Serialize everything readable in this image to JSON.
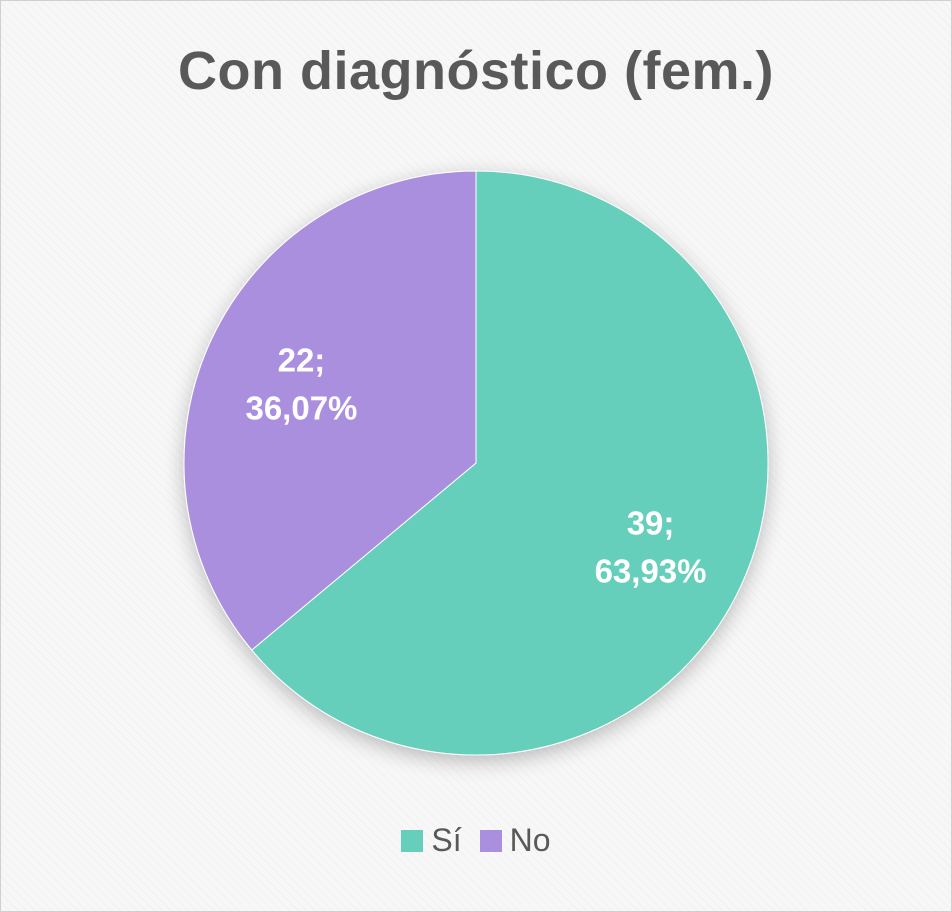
{
  "chart_data": {
    "type": "pie",
    "title": "Con diagnóstico (fem.)",
    "categories": [
      "Sí",
      "No"
    ],
    "values": [
      39,
      22
    ],
    "percent_labels": [
      "63,93%",
      "36,07%"
    ],
    "colors": [
      "#66CFBB",
      "#AB8FDF"
    ],
    "legend": {
      "position": "bottom",
      "entries": [
        "Sí",
        "No"
      ]
    },
    "data_labels": [
      {
        "value": "39;",
        "percent": "63,93%"
      },
      {
        "value": "22;",
        "percent": "36,07%"
      }
    ]
  }
}
